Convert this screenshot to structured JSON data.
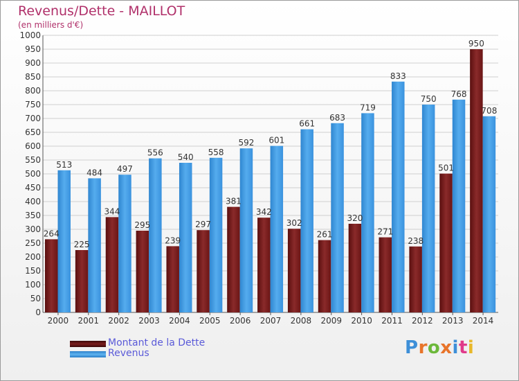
{
  "title": "Revenus/Dette - MAILLOT",
  "subtitle": "(en milliers d'€)",
  "legend": {
    "debt_label": "Montant de la Dette",
    "revenue_label": "Revenus"
  },
  "logo_text": "Proxiti",
  "colors": {
    "debt": "#7a1c1c",
    "revenue": "#3d9be3",
    "title": "#b0306a",
    "legend_text": "#5a5ad8"
  },
  "chart_data": {
    "type": "bar",
    "categories": [
      "2000",
      "2001",
      "2002",
      "2003",
      "2004",
      "2005",
      "2006",
      "2007",
      "2008",
      "2009",
      "2010",
      "2011",
      "2012",
      "2013",
      "2014"
    ],
    "series": [
      {
        "name": "Montant de la Dette",
        "values": [
          264,
          225,
          344,
          295,
          239,
          297,
          381,
          342,
          302,
          261,
          320,
          271,
          238,
          501,
          950
        ]
      },
      {
        "name": "Revenus",
        "values": [
          513,
          484,
          497,
          556,
          540,
          558,
          592,
          601,
          661,
          683,
          719,
          833,
          750,
          768,
          708
        ]
      }
    ],
    "ylim": [
      0,
      1000
    ],
    "ytick_step": 50,
    "grid": true,
    "legend_position": "bottom-left"
  }
}
